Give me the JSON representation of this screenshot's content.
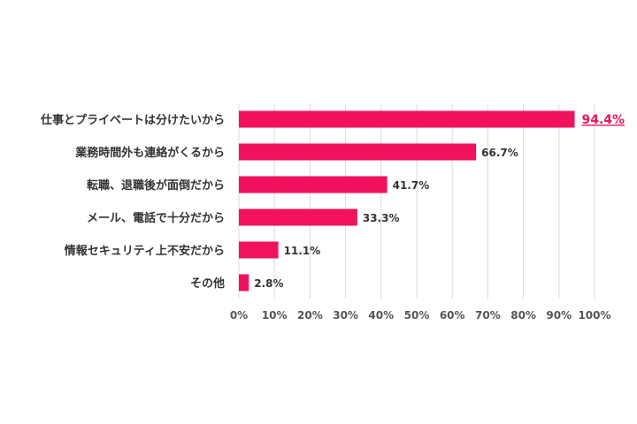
{
  "chart_data": {
    "type": "bar",
    "orientation": "horizontal",
    "categories": [
      "仕事とプライベートは分けたいから",
      "業務時間外も連絡がくるから",
      "転職、退職後が面倒だから",
      "メール、電話で十分だから",
      "情報セキュリティ上不安だから",
      "その他"
    ],
    "values": [
      94.4,
      66.7,
      41.7,
      33.3,
      11.1,
      2.8
    ],
    "value_labels": [
      "94.4%",
      "66.7%",
      "41.7%",
      "33.3%",
      "11.1%",
      "2.8%"
    ],
    "highlight_index": 0,
    "x_ticks": [
      "0%",
      "10%",
      "20%",
      "30%",
      "40%",
      "50%",
      "60%",
      "70%",
      "80%",
      "90%",
      "100%"
    ],
    "xlim": [
      0,
      100
    ],
    "grid": "vertical",
    "bar_color": "#f0115f",
    "highlight_label_color": "#e8185e",
    "title": "",
    "xlabel": "",
    "ylabel": ""
  }
}
